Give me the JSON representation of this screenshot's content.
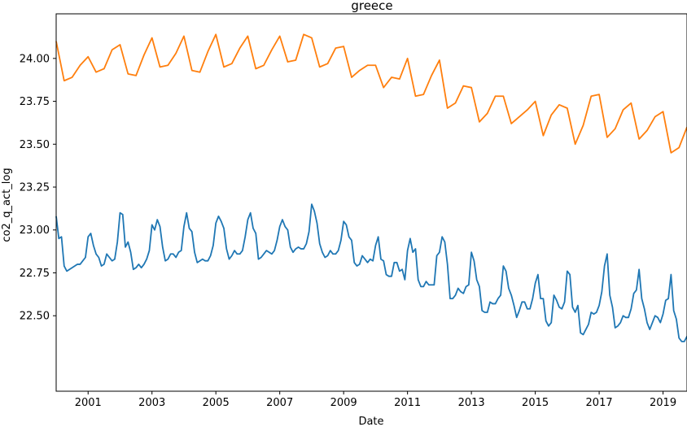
{
  "chart_data": {
    "type": "line",
    "title": "greece",
    "xlabel": "Date",
    "ylabel": "co2_q_act_log",
    "xlim": [
      "2000-01",
      "2019-10"
    ],
    "ylim": [
      22.06,
      24.26
    ],
    "x_ticks": [
      "2001",
      "2003",
      "2005",
      "2007",
      "2009",
      "2011",
      "2013",
      "2015",
      "2017",
      "2019"
    ],
    "y_ticks": [
      "22.50",
      "22.75",
      "23.00",
      "23.25",
      "23.50",
      "23.75",
      "24.00"
    ],
    "grid": false,
    "legend": false,
    "series": [
      {
        "color": "#1f77b4",
        "frequency": "monthly",
        "start": "2000-01",
        "values": [
          23.08,
          22.95,
          22.96,
          22.79,
          22.76,
          22.77,
          22.78,
          22.79,
          22.8,
          22.8,
          22.82,
          22.84,
          22.96,
          22.98,
          22.91,
          22.86,
          22.84,
          22.79,
          22.8,
          22.86,
          22.84,
          22.82,
          22.83,
          22.93,
          23.1,
          23.09,
          22.9,
          22.93,
          22.87,
          22.77,
          22.78,
          22.8,
          22.78,
          22.8,
          22.83,
          22.88,
          23.03,
          23.0,
          23.06,
          23.02,
          22.9,
          22.82,
          22.83,
          22.86,
          22.86,
          22.84,
          22.87,
          22.88,
          23.02,
          23.1,
          23.01,
          22.99,
          22.87,
          22.81,
          22.82,
          22.83,
          22.82,
          22.82,
          22.85,
          22.91,
          23.04,
          23.08,
          23.05,
          23.01,
          22.89,
          22.83,
          22.85,
          22.88,
          22.86,
          22.86,
          22.88,
          22.96,
          23.06,
          23.1,
          23.01,
          22.98,
          22.83,
          22.84,
          22.86,
          22.88,
          22.87,
          22.86,
          22.88,
          22.94,
          23.02,
          23.06,
          23.02,
          23.0,
          22.9,
          22.87,
          22.89,
          22.9,
          22.89,
          22.89,
          22.92,
          22.99,
          23.15,
          23.11,
          23.04,
          22.92,
          22.87,
          22.84,
          22.85,
          22.88,
          22.86,
          22.86,
          22.88,
          22.94,
          23.05,
          23.03,
          22.96,
          22.94,
          22.81,
          22.79,
          22.8,
          22.85,
          22.83,
          22.81,
          22.83,
          22.82,
          22.91,
          22.96,
          22.83,
          22.82,
          22.74,
          22.73,
          22.73,
          22.81,
          22.81,
          22.76,
          22.77,
          22.71,
          22.88,
          22.95,
          22.87,
          22.89,
          22.71,
          22.67,
          22.67,
          22.7,
          22.68,
          22.68,
          22.68,
          22.85,
          22.87,
          22.96,
          22.93,
          22.8,
          22.6,
          22.6,
          22.62,
          22.66,
          22.64,
          22.63,
          22.67,
          22.68,
          22.87,
          22.82,
          22.71,
          22.67,
          22.53,
          22.52,
          22.52,
          22.58,
          22.57,
          22.57,
          22.6,
          22.62,
          22.79,
          22.76,
          22.66,
          22.62,
          22.56,
          22.49,
          22.53,
          22.58,
          22.58,
          22.54,
          22.54,
          22.6,
          22.69,
          22.74,
          22.6,
          22.6,
          22.47,
          22.44,
          22.46,
          22.62,
          22.59,
          22.55,
          22.54,
          22.58,
          22.76,
          22.74,
          22.55,
          22.52,
          22.56,
          22.4,
          22.39,
          22.42,
          22.45,
          22.52,
          22.51,
          22.52,
          22.56,
          22.64,
          22.79,
          22.86,
          22.62,
          22.55,
          22.43,
          22.44,
          22.46,
          22.5,
          22.49,
          22.49,
          22.54,
          22.63,
          22.65,
          22.77,
          22.6,
          22.54,
          22.46,
          22.42,
          22.46,
          22.5,
          22.49,
          22.46,
          22.51,
          22.59,
          22.6,
          22.74,
          22.53,
          22.48,
          22.37,
          22.35,
          22.35,
          22.38,
          22.38,
          22.38,
          22.42
        ]
      },
      {
        "color": "#ff7f0e",
        "frequency": "quarterly",
        "start": "2000-01",
        "values": [
          24.1,
          23.87,
          23.89,
          23.96,
          24.01,
          23.92,
          23.94,
          24.05,
          24.08,
          23.91,
          23.9,
          24.02,
          24.12,
          23.95,
          23.96,
          24.03,
          24.13,
          23.93,
          23.92,
          24.04,
          24.14,
          23.95,
          23.97,
          24.06,
          24.13,
          23.94,
          23.96,
          24.05,
          24.13,
          23.98,
          23.99,
          24.14,
          24.12,
          23.95,
          23.97,
          24.06,
          24.07,
          23.89,
          23.93,
          23.96,
          23.96,
          23.83,
          23.89,
          23.88,
          24.0,
          23.78,
          23.79,
          23.9,
          23.99,
          23.71,
          23.74,
          23.84,
          23.83,
          23.63,
          23.68,
          23.78,
          23.78,
          23.62,
          23.66,
          23.7,
          23.75,
          23.55,
          23.67,
          23.73,
          23.71,
          23.5,
          23.61,
          23.78,
          23.79,
          23.54,
          23.59,
          23.7,
          23.74,
          23.53,
          23.58,
          23.66,
          23.69,
          23.45,
          23.48,
          23.6
        ]
      }
    ]
  }
}
